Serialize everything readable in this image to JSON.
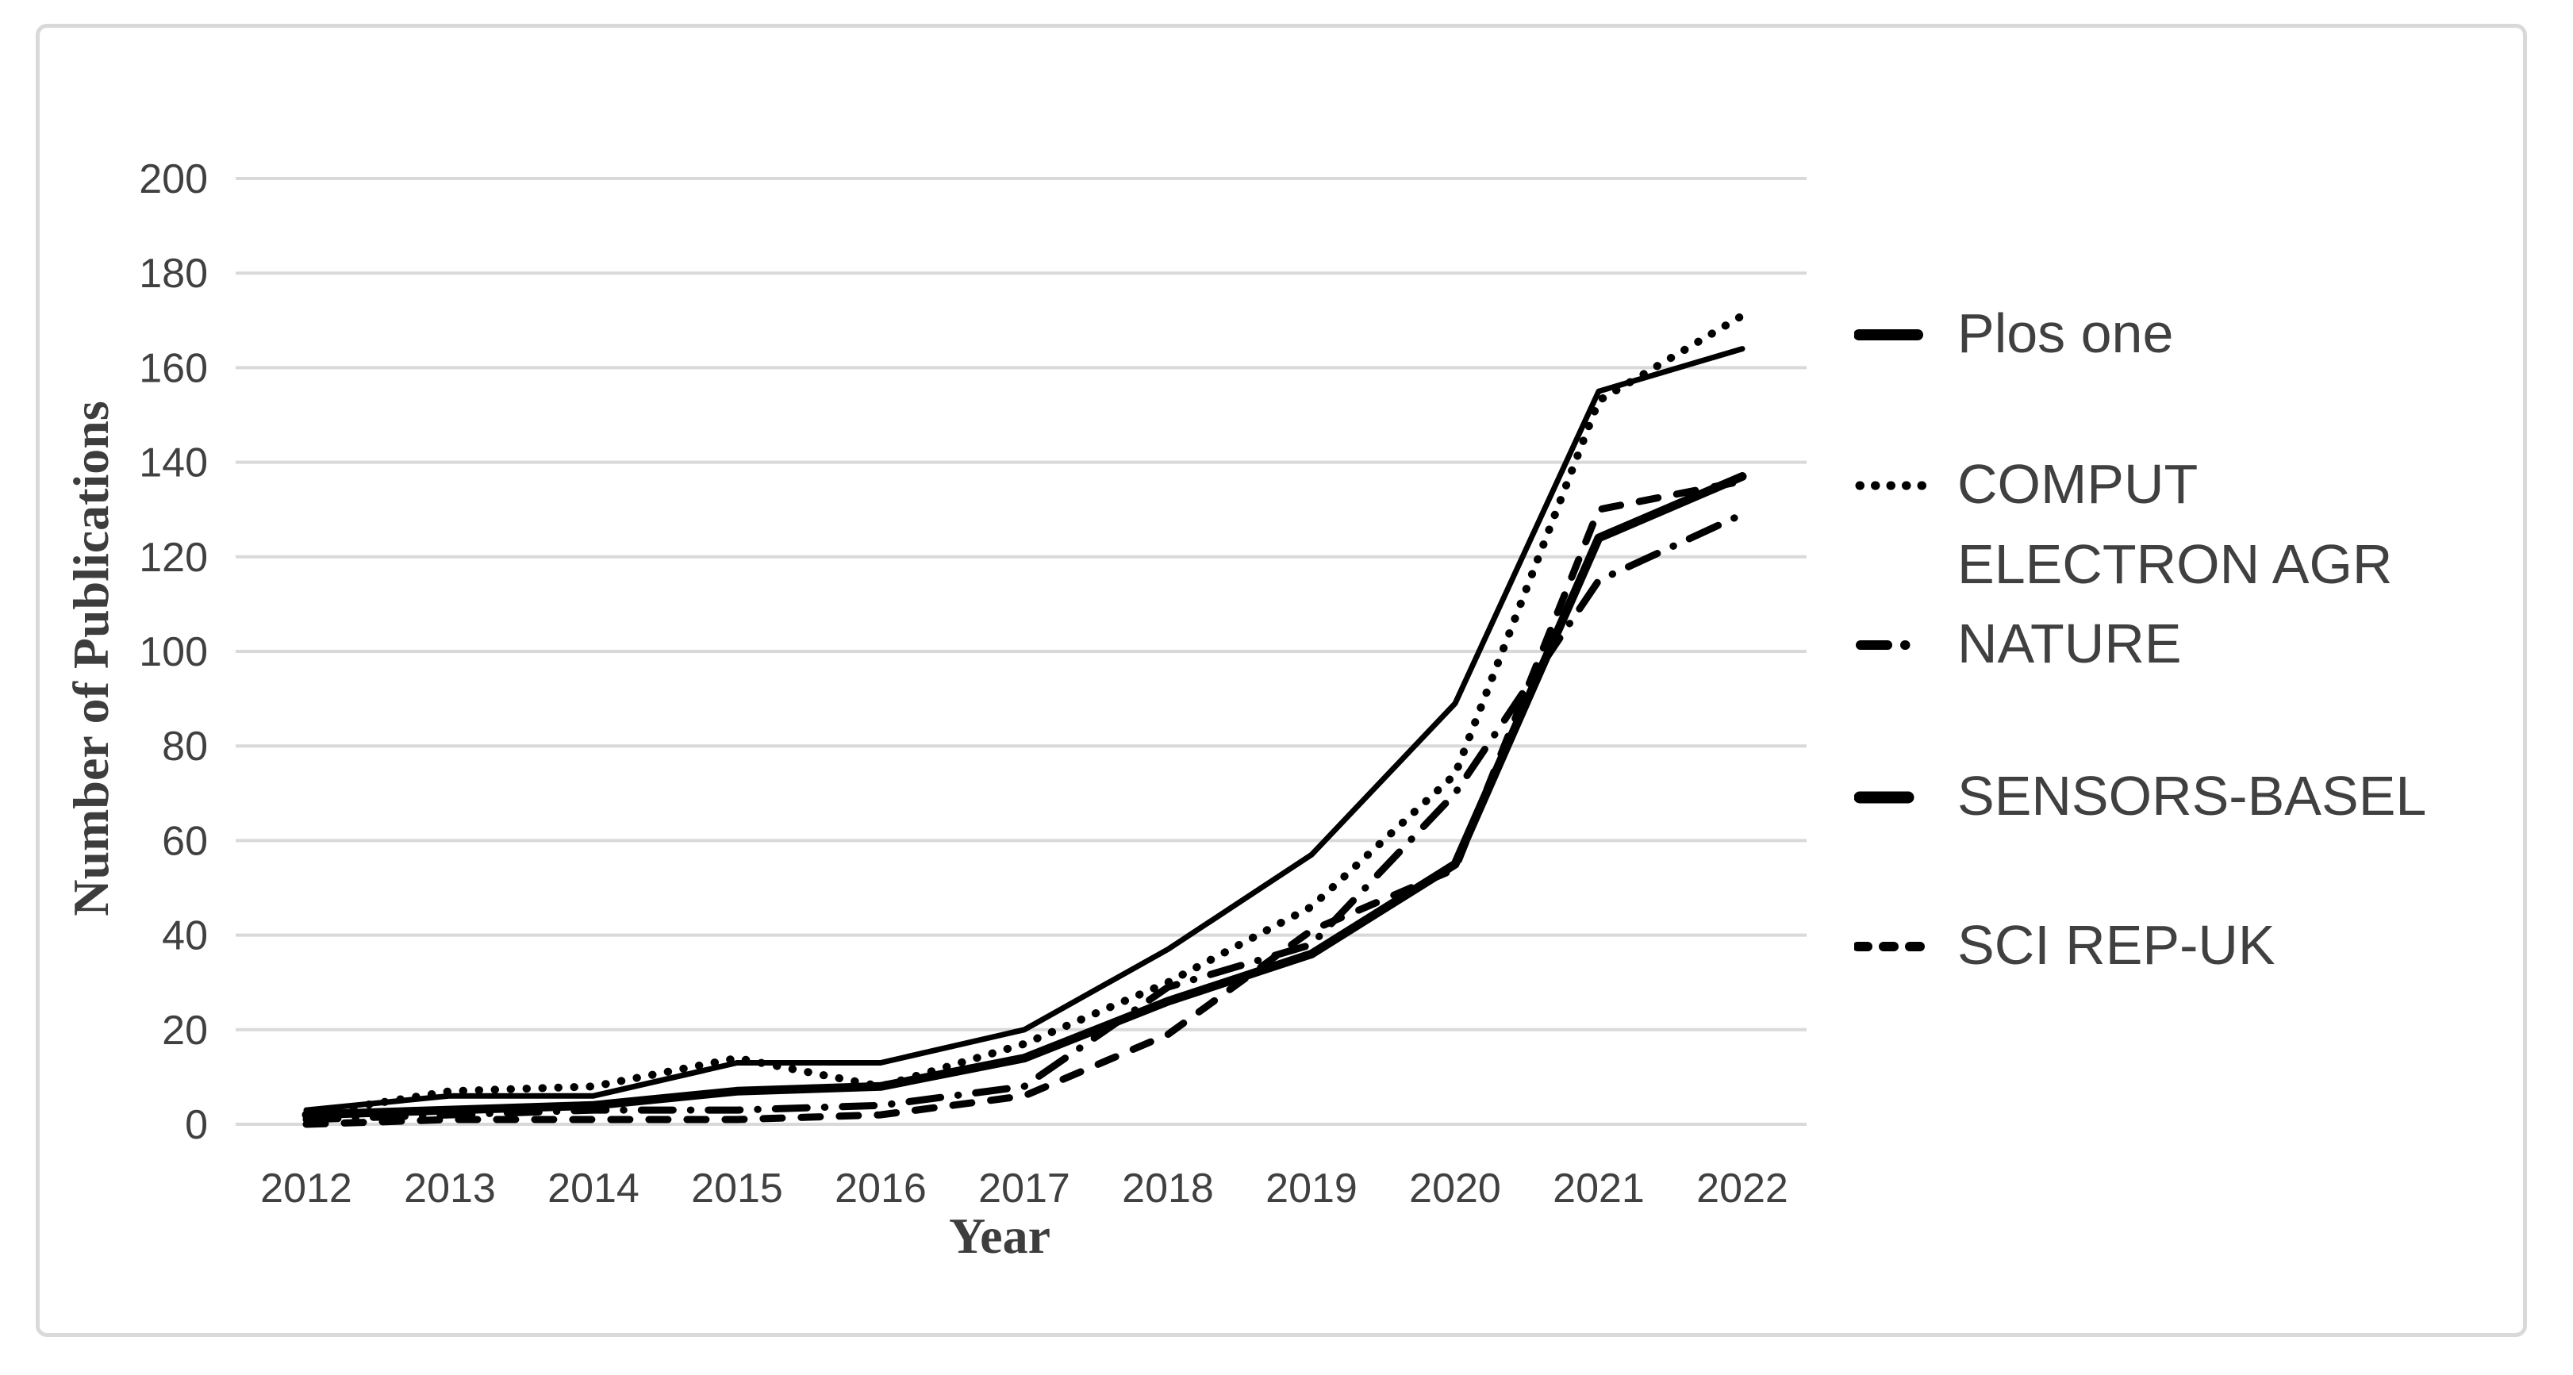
{
  "figure": {
    "background_color": "#ffffff",
    "border_color": "#d9d9d9",
    "line_color": "#000000",
    "grid_color": "#d9d9d9",
    "text_color": "#404040"
  },
  "chart_data": {
    "type": "line",
    "title": "",
    "xlabel": "Year",
    "ylabel": "Number of Publications",
    "x": [
      2012,
      2013,
      2014,
      2015,
      2016,
      2017,
      2018,
      2019,
      2020,
      2021,
      2022
    ],
    "yticks": [
      0,
      20,
      40,
      60,
      80,
      100,
      120,
      140,
      160,
      180,
      200
    ],
    "ylim": [
      0,
      200
    ],
    "grid": "horizontal",
    "legend_position": "right",
    "series": [
      {
        "name": "Plos one",
        "style": "solid",
        "values": [
          3,
          6,
          6,
          13,
          13,
          20,
          37,
          57,
          89,
          155,
          164
        ]
      },
      {
        "name": "COMPUT ELECTRON AGR",
        "style": "dotted",
        "values": [
          2,
          7,
          8,
          14,
          8,
          17,
          30,
          46,
          74,
          153,
          171
        ]
      },
      {
        "name": "NATURE",
        "style": "dashdot",
        "values": [
          1,
          2,
          3,
          3,
          4,
          8,
          29,
          38,
          70,
          115,
          129
        ]
      },
      {
        "name": "SENSORS-BASEL",
        "style": "thick",
        "values": [
          2,
          3,
          4,
          7,
          8,
          14,
          26,
          36,
          55,
          124,
          137
        ]
      },
      {
        "name": "SCI REP-UK",
        "style": "dashed",
        "values": [
          0,
          1,
          1,
          1,
          2,
          6,
          19,
          41,
          54,
          130,
          136
        ]
      }
    ]
  }
}
